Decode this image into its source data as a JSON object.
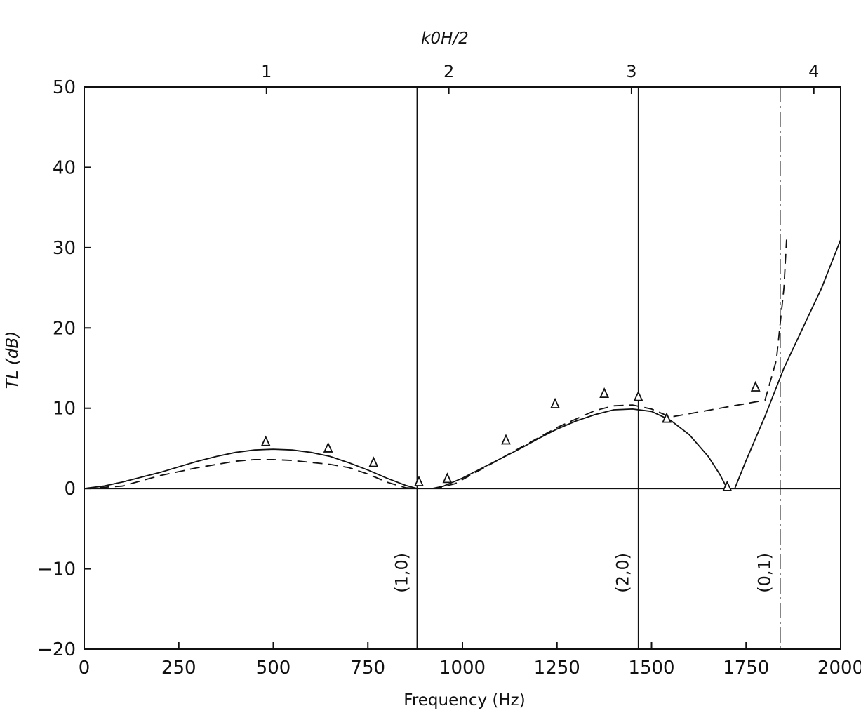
{
  "chart_data": {
    "type": "line",
    "title": "",
    "xlabel": "Frequency (Hz)",
    "ylabel": "TL (dB)",
    "top_axis_label": "k0H/2",
    "xlim": [
      0,
      2000
    ],
    "ylim": [
      -20,
      50
    ],
    "x_ticks": [
      {
        "value": 0,
        "label": "0"
      },
      {
        "value": 250,
        "label": "250"
      },
      {
        "value": 500,
        "label": "500"
      },
      {
        "value": 750,
        "label": "750"
      },
      {
        "value": 1000,
        "label": "1000"
      },
      {
        "value": 1250,
        "label": "1250"
      },
      {
        "value": 1500,
        "label": "1500"
      },
      {
        "value": 1750,
        "label": "1750"
      },
      {
        "value": 2000,
        "label": "2000"
      }
    ],
    "y_ticks": [
      {
        "value": -20,
        "label": "−20"
      },
      {
        "value": -10,
        "label": "−10"
      },
      {
        "value": 0,
        "label": "0"
      },
      {
        "value": 10,
        "label": "10"
      },
      {
        "value": 20,
        "label": "20"
      },
      {
        "value": 30,
        "label": "30"
      },
      {
        "value": 40,
        "label": "40"
      },
      {
        "value": 50,
        "label": "50"
      }
    ],
    "top_ticks": [
      {
        "label": "1",
        "x": 482
      },
      {
        "label": "2",
        "x": 964
      },
      {
        "label": "3",
        "x": 1447
      },
      {
        "label": "4",
        "x": 1929
      }
    ],
    "mode_lines": [
      {
        "label": "(1,0)",
        "x": 880,
        "style": "solid"
      },
      {
        "label": "(2,0)",
        "x": 1465,
        "style": "solid"
      },
      {
        "label": "(0,1)",
        "x": 1840,
        "style": "dashdot"
      }
    ],
    "grid": false,
    "series": [
      {
        "style": "solid",
        "points": [
          [
            0,
            0
          ],
          [
            50,
            0.3
          ],
          [
            100,
            0.8
          ],
          [
            150,
            1.4
          ],
          [
            200,
            2.0
          ],
          [
            250,
            2.7
          ],
          [
            300,
            3.4
          ],
          [
            350,
            4.0
          ],
          [
            400,
            4.5
          ],
          [
            450,
            4.8
          ],
          [
            500,
            4.9
          ],
          [
            550,
            4.8
          ],
          [
            600,
            4.5
          ],
          [
            650,
            4.0
          ],
          [
            700,
            3.2
          ],
          [
            750,
            2.3
          ],
          [
            800,
            1.3
          ],
          [
            850,
            0.4
          ],
          [
            880,
            0
          ],
          [
            920,
            0
          ],
          [
            950,
            0.3
          ],
          [
            1000,
            1.3
          ],
          [
            1050,
            2.5
          ],
          [
            1100,
            3.7
          ],
          [
            1150,
            4.9
          ],
          [
            1200,
            6.2
          ],
          [
            1250,
            7.4
          ],
          [
            1300,
            8.4
          ],
          [
            1350,
            9.2
          ],
          [
            1400,
            9.8
          ],
          [
            1450,
            9.9
          ],
          [
            1500,
            9.6
          ],
          [
            1550,
            8.5
          ],
          [
            1600,
            6.7
          ],
          [
            1650,
            4.0
          ],
          [
            1680,
            1.8
          ],
          [
            1700,
            0
          ],
          [
            1720,
            0
          ],
          [
            1750,
            3.5
          ],
          [
            1800,
            9.0
          ],
          [
            1850,
            15.0
          ],
          [
            1900,
            20.0
          ],
          [
            1950,
            25.0
          ],
          [
            2000,
            31.0
          ]
        ]
      },
      {
        "style": "dashed",
        "points": [
          [
            0,
            0
          ],
          [
            100,
            0.3
          ],
          [
            200,
            1.6
          ],
          [
            300,
            2.6
          ],
          [
            400,
            3.4
          ],
          [
            450,
            3.6
          ],
          [
            500,
            3.6
          ],
          [
            550,
            3.5
          ],
          [
            650,
            3.0
          ],
          [
            700,
            2.6
          ],
          [
            750,
            1.8
          ],
          [
            800,
            0.8
          ],
          [
            850,
            0.1
          ],
          [
            880,
            0
          ],
          [
            930,
            0
          ],
          [
            980,
            0.6
          ],
          [
            1050,
            2.4
          ],
          [
            1150,
            5.0
          ],
          [
            1250,
            7.6
          ],
          [
            1350,
            9.7
          ],
          [
            1400,
            10.3
          ],
          [
            1450,
            10.4
          ],
          [
            1500,
            9.9
          ],
          [
            1550,
            8.9
          ],
          [
            1800,
            11.0
          ],
          [
            1830,
            16.0
          ],
          [
            1850,
            25.0
          ],
          [
            1857,
            31.0
          ]
        ]
      },
      {
        "style": "triangles",
        "points": [
          [
            480,
            5.8
          ],
          [
            645,
            5.0
          ],
          [
            765,
            3.2
          ],
          [
            885,
            0.8
          ],
          [
            960,
            1.2
          ],
          [
            1115,
            6.0
          ],
          [
            1245,
            10.5
          ],
          [
            1375,
            11.8
          ],
          [
            1465,
            11.4
          ],
          [
            1540,
            8.7
          ],
          [
            1700,
            0.2
          ],
          [
            1775,
            12.6
          ]
        ]
      }
    ]
  }
}
